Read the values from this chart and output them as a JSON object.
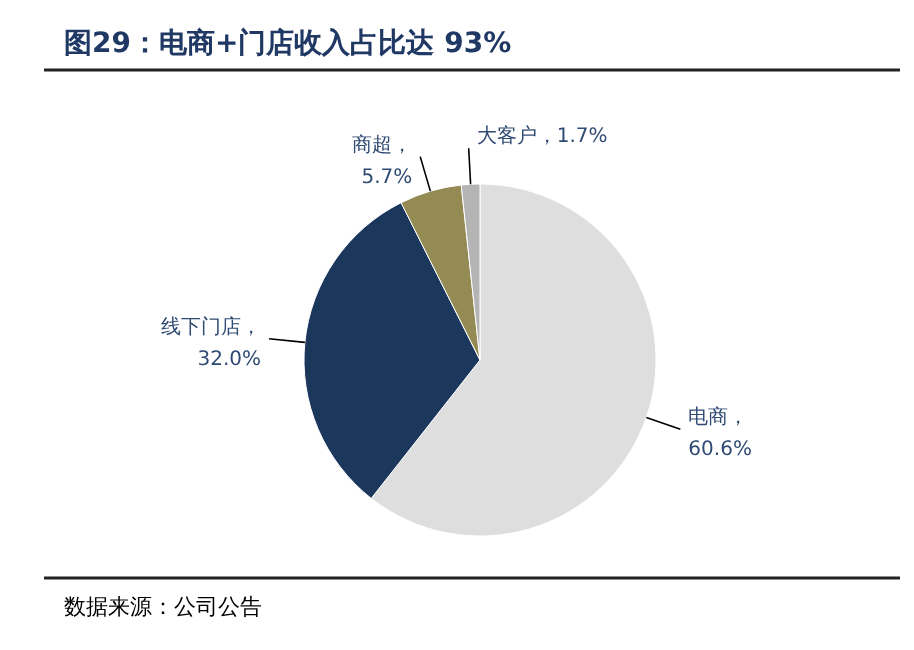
{
  "chart_data": {
    "type": "pie",
    "title": "图29：电商+门店收入占比达 93%",
    "categories": [
      "电商",
      "线下门店",
      "商超",
      "大客户"
    ],
    "values": [
      60.6,
      32.0,
      5.7,
      1.7
    ],
    "colors": [
      "#dedede",
      "#1b375c",
      "#948a54",
      "#b4b4b4"
    ],
    "value_labels": [
      "，\n60.6%",
      "，\n32.0%",
      "，\n5.7%",
      "，1.7%"
    ],
    "annotations": [
      "数据来源：公司公告"
    ]
  }
}
